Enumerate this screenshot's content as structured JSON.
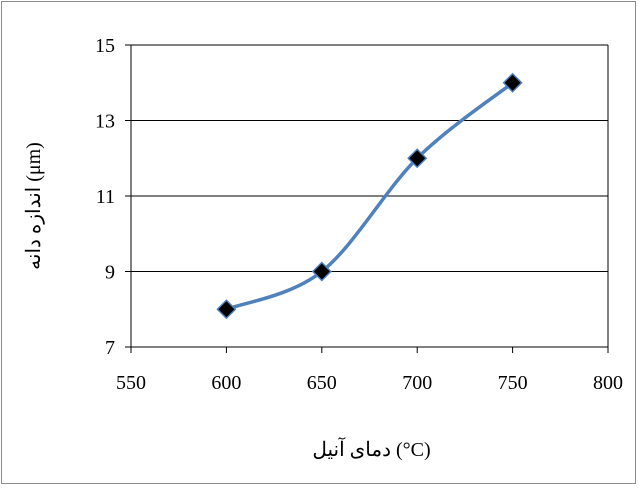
{
  "chart_data": {
    "type": "line",
    "title": "",
    "xlabel": "دمای آنیل (°C)",
    "ylabel": "اندازه دانه (μm)",
    "x": [
      600,
      650,
      700,
      750
    ],
    "series": [
      {
        "values": [
          8,
          9,
          12,
          14
        ],
        "color": "#4f81bd",
        "marker": "diamond",
        "marker_color": "#000000",
        "smoothed": true
      }
    ],
    "xlim": [
      550,
      800
    ],
    "ylim": [
      7,
      15
    ],
    "xticks": [
      "550",
      "600",
      "650",
      "700",
      "750",
      "800"
    ],
    "yticks": [
      "7",
      "9",
      "11",
      "13",
      "15"
    ],
    "grid": "horizontal",
    "legend": "none"
  }
}
